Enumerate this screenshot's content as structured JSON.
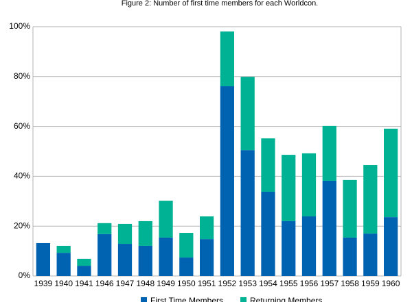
{
  "chart_data": {
    "type": "stacked-bar",
    "title": "Figure 2: Number of first time members for each Worldcon.",
    "categories": [
      "1939",
      "1940",
      "1941",
      "1946",
      "1947",
      "1948",
      "1949",
      "1950",
      "1951",
      "1952",
      "1953",
      "1954",
      "1955",
      "1956",
      "1957",
      "1958",
      "1959",
      "1960"
    ],
    "series": [
      {
        "name": "First Time Members",
        "color": "#0063b1",
        "values": [
          13.2,
          9.3,
          4.1,
          16.8,
          12.9,
          12.1,
          15.4,
          7.4,
          14.8,
          76.1,
          50.5,
          33.8,
          22.0,
          23.9,
          38.2,
          15.4,
          17.0,
          23.6
        ]
      },
      {
        "name": "Returning Members",
        "color": "#00b294",
        "values": [
          0,
          2.8,
          2.8,
          4.4,
          8.0,
          9.9,
          14.8,
          9.9,
          9.1,
          22.0,
          29.4,
          21.4,
          26.6,
          25.3,
          22.0,
          23.1,
          27.5,
          35.5
        ]
      }
    ],
    "ylim": [
      0,
      100
    ],
    "yticks": [
      {
        "value": 0,
        "label": "0%"
      },
      {
        "value": 20,
        "label": "20%"
      },
      {
        "value": 40,
        "label": "40%"
      },
      {
        "value": 60,
        "label": "60%"
      },
      {
        "value": 80,
        "label": "80%"
      },
      {
        "value": 100,
        "label": "100%"
      }
    ],
    "grid": true,
    "legend": "bottom"
  }
}
